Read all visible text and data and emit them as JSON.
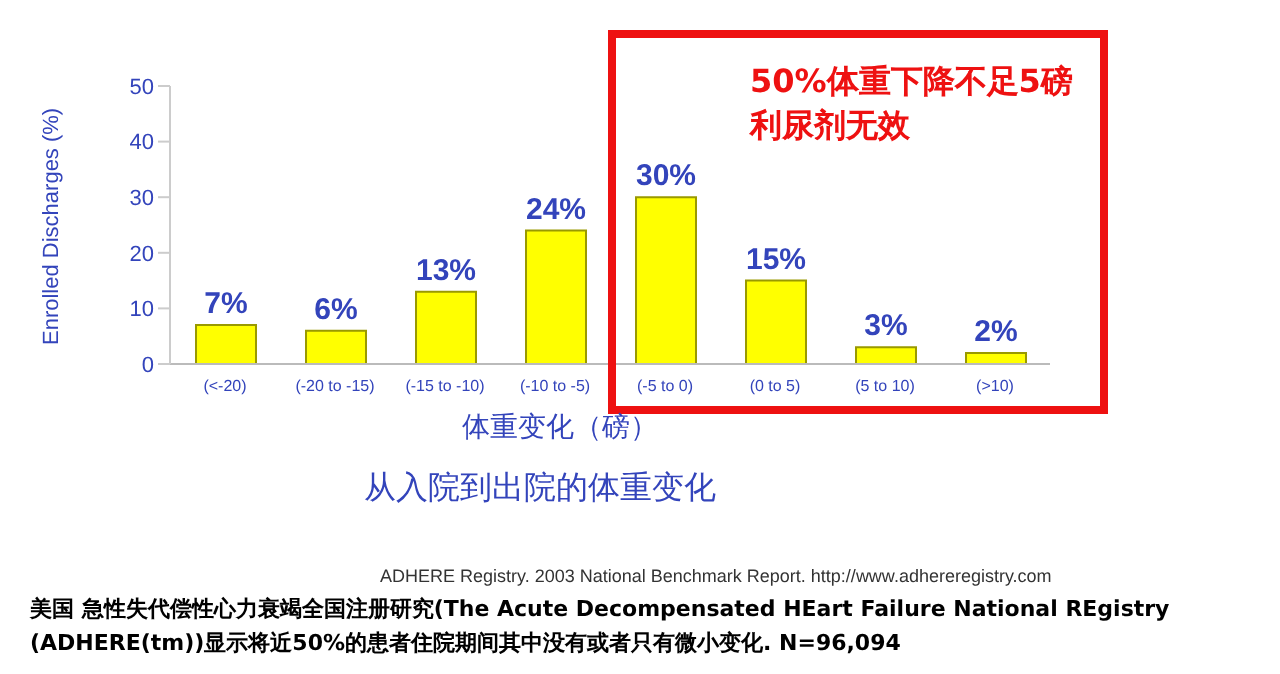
{
  "chart_data": {
    "type": "bar",
    "title": "从入院到出院的体重变化",
    "xlabel": "体重变化（磅）",
    "ylabel": "Enrolled Discharges (%)",
    "categories": [
      "(<-20)",
      "(-20 to -15)",
      "(-15 to -10)",
      "(-10 to -5)",
      "(-5 to 0)",
      "(0 to 5)",
      "(5 to 10)",
      "(>10)"
    ],
    "values": [
      7,
      6,
      13,
      24,
      30,
      15,
      3,
      2
    ],
    "value_labels": [
      "7%",
      "6%",
      "13%",
      "24%",
      "30%",
      "15%",
      "3%",
      "2%"
    ],
    "color": "#ffff00",
    "ylim": [
      0,
      50
    ],
    "yticks": [
      0,
      10,
      20,
      30,
      40,
      50
    ],
    "annotations": [
      "50%体重下降不足5磅利尿剂无效",
      "ADHERE Registry. 2003 National Benchmark Report. http://www.adhereregistry.com",
      "美国 急性失代偿性心力衰竭全国注册研究(The Acute Decompensated HEart Failure National REgistry (ADHERE(tm))显示将近50%的患者住院期间其中没有或者只有微小变化. N=96,094"
    ]
  }
}
